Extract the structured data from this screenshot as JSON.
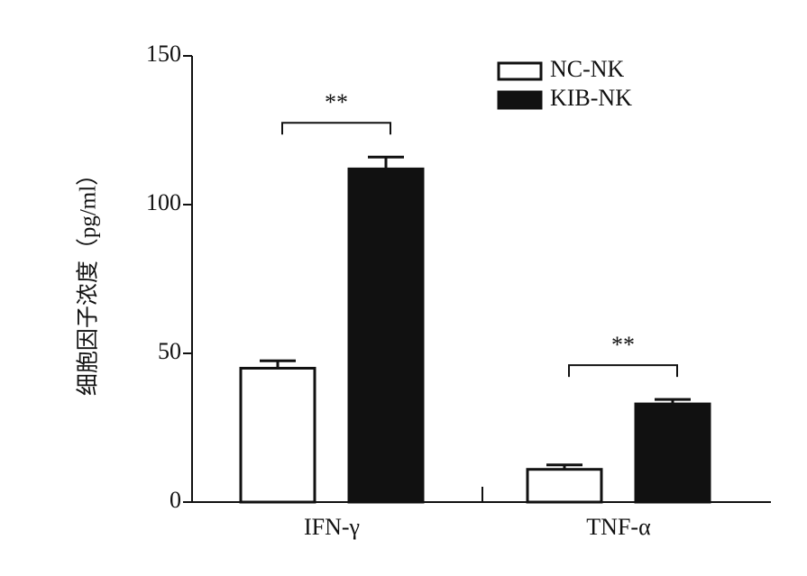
{
  "chart_data": {
    "type": "bar",
    "y_label": "细胞因子浓度（pg/ml）",
    "categories": [
      "IFN-γ",
      "TNF-α"
    ],
    "series": [
      {
        "name": "NC-NK",
        "color": "#ffffff",
        "values": [
          45,
          11
        ],
        "errors": [
          2.5,
          1.5
        ]
      },
      {
        "name": "KIB-NK",
        "color": "#111111",
        "values": [
          112,
          33
        ],
        "errors": [
          4,
          1.5
        ]
      }
    ],
    "annotations": [
      "**",
      "**"
    ],
    "ylim": [
      0,
      150
    ],
    "yticks": [
      0,
      50,
      100,
      150
    ],
    "legend": "top-right"
  }
}
